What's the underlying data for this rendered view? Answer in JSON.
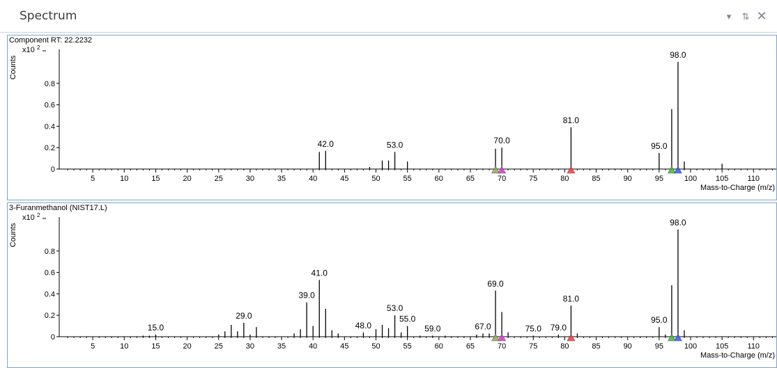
{
  "window": {
    "title": "Spectrum",
    "icons": [
      "chevron-down-icon",
      "pin-icon",
      "close-icon"
    ]
  },
  "colors": {
    "panel_border": "#7ea2c8",
    "title_text": "#3b3b3b",
    "marker_olive": "#a8a860",
    "marker_magenta": "#e040e0",
    "marker_red": "#ff4040",
    "marker_green": "#40c040",
    "marker_blue": "#4060ff"
  },
  "chart_data": [
    {
      "type": "bar",
      "title": "Component RT: 22.2232",
      "ylabel": "Counts",
      "yscale_label": "x10",
      "yscale_exp": "2",
      "xlabel": "Mass-to-Charge (m/z)",
      "xlim": [
        0,
        115
      ],
      "ylim": [
        0,
        1.0
      ],
      "yticks": [
        "0",
        "0.2",
        "0.4",
        "0.6",
        "0.8"
      ],
      "xticks": [
        "5",
        "10",
        "15",
        "20",
        "25",
        "30",
        "35",
        "40",
        "45",
        "50",
        "55",
        "60",
        "65",
        "70",
        "75",
        "80",
        "85",
        "90",
        "95",
        "100",
        "105",
        "110"
      ],
      "peaks": [
        {
          "mz": 41,
          "y": 0.16
        },
        {
          "mz": 42,
          "y": 0.17,
          "label": "42.0"
        },
        {
          "mz": 49,
          "y": 0.02
        },
        {
          "mz": 51,
          "y": 0.08
        },
        {
          "mz": 52,
          "y": 0.08
        },
        {
          "mz": 53,
          "y": 0.16,
          "label": "53.0"
        },
        {
          "mz": 55,
          "y": 0.07
        },
        {
          "mz": 69,
          "y": 0.19
        },
        {
          "mz": 70,
          "y": 0.2,
          "label": "70.0"
        },
        {
          "mz": 81,
          "y": 0.39,
          "label": "81.0"
        },
        {
          "mz": 95,
          "y": 0.15,
          "label": "95.0"
        },
        {
          "mz": 97,
          "y": 0.56
        },
        {
          "mz": 98,
          "y": 1.0,
          "label": "98.0"
        },
        {
          "mz": 99,
          "y": 0.07
        },
        {
          "mz": 105,
          "y": 0.05
        }
      ],
      "markers": [
        {
          "mz": 69,
          "color": "#a8a860"
        },
        {
          "mz": 70,
          "color": "#e040e0"
        },
        {
          "mz": 81,
          "color": "#ff4040"
        },
        {
          "mz": 97,
          "color": "#40c040"
        },
        {
          "mz": 98,
          "color": "#4060ff"
        }
      ]
    },
    {
      "type": "bar",
      "title": "3-Furanmethanol (NIST17.L)",
      "ylabel": "Counts",
      "yscale_label": "x10",
      "yscale_exp": "2",
      "xlabel": "Mass-to-Charge (m/z)",
      "xlim": [
        0,
        115
      ],
      "ylim": [
        0,
        1.0
      ],
      "yticks": [
        "0",
        "0.2",
        "0.4",
        "0.6",
        "0.8"
      ],
      "xticks": [
        "5",
        "10",
        "15",
        "20",
        "25",
        "30",
        "35",
        "40",
        "45",
        "50",
        "55",
        "60",
        "65",
        "70",
        "75",
        "80",
        "85",
        "90",
        "95",
        "100",
        "105",
        "110"
      ],
      "peaks": [
        {
          "mz": 13,
          "y": 0.01
        },
        {
          "mz": 14,
          "y": 0.01
        },
        {
          "mz": 15,
          "y": 0.02,
          "label": "15.0"
        },
        {
          "mz": 25,
          "y": 0.02
        },
        {
          "mz": 26,
          "y": 0.05
        },
        {
          "mz": 27,
          "y": 0.11
        },
        {
          "mz": 28,
          "y": 0.05
        },
        {
          "mz": 29,
          "y": 0.13,
          "label": "29.0"
        },
        {
          "mz": 30,
          "y": 0.02
        },
        {
          "mz": 31,
          "y": 0.09
        },
        {
          "mz": 37,
          "y": 0.03
        },
        {
          "mz": 38,
          "y": 0.07
        },
        {
          "mz": 39,
          "y": 0.32,
          "label": "39.0"
        },
        {
          "mz": 40,
          "y": 0.1
        },
        {
          "mz": 41,
          "y": 0.53,
          "label": "41.0"
        },
        {
          "mz": 42,
          "y": 0.26
        },
        {
          "mz": 43,
          "y": 0.06
        },
        {
          "mz": 44,
          "y": 0.03
        },
        {
          "mz": 48,
          "y": 0.04,
          "label": "48.0"
        },
        {
          "mz": 50,
          "y": 0.07
        },
        {
          "mz": 51,
          "y": 0.11
        },
        {
          "mz": 52,
          "y": 0.08
        },
        {
          "mz": 53,
          "y": 0.2,
          "label": "53.0"
        },
        {
          "mz": 54,
          "y": 0.04
        },
        {
          "mz": 55,
          "y": 0.1,
          "label": "55.0"
        },
        {
          "mz": 57,
          "y": 0.01
        },
        {
          "mz": 59,
          "y": 0.01,
          "label": "59.0"
        },
        {
          "mz": 61,
          "y": 0.01
        },
        {
          "mz": 66,
          "y": 0.02
        },
        {
          "mz": 67,
          "y": 0.03,
          "label": "67.0"
        },
        {
          "mz": 68,
          "y": 0.03
        },
        {
          "mz": 69,
          "y": 0.43,
          "label": "69.0"
        },
        {
          "mz": 70,
          "y": 0.23
        },
        {
          "mz": 71,
          "y": 0.04
        },
        {
          "mz": 75,
          "y": 0.01,
          "label": "75.0"
        },
        {
          "mz": 79,
          "y": 0.02,
          "label": "79.0"
        },
        {
          "mz": 81,
          "y": 0.29,
          "label": "81.0"
        },
        {
          "mz": 82,
          "y": 0.03
        },
        {
          "mz": 95,
          "y": 0.09,
          "label": "95.0"
        },
        {
          "mz": 96,
          "y": 0.02
        },
        {
          "mz": 97,
          "y": 0.48
        },
        {
          "mz": 98,
          "y": 1.0,
          "label": "98.0"
        },
        {
          "mz": 99,
          "y": 0.06
        }
      ],
      "markers": [
        {
          "mz": 69,
          "color": "#a8a860"
        },
        {
          "mz": 70,
          "color": "#e040e0"
        },
        {
          "mz": 81,
          "color": "#ff4040"
        },
        {
          "mz": 97,
          "color": "#40c040"
        },
        {
          "mz": 98,
          "color": "#4060ff"
        }
      ]
    }
  ]
}
